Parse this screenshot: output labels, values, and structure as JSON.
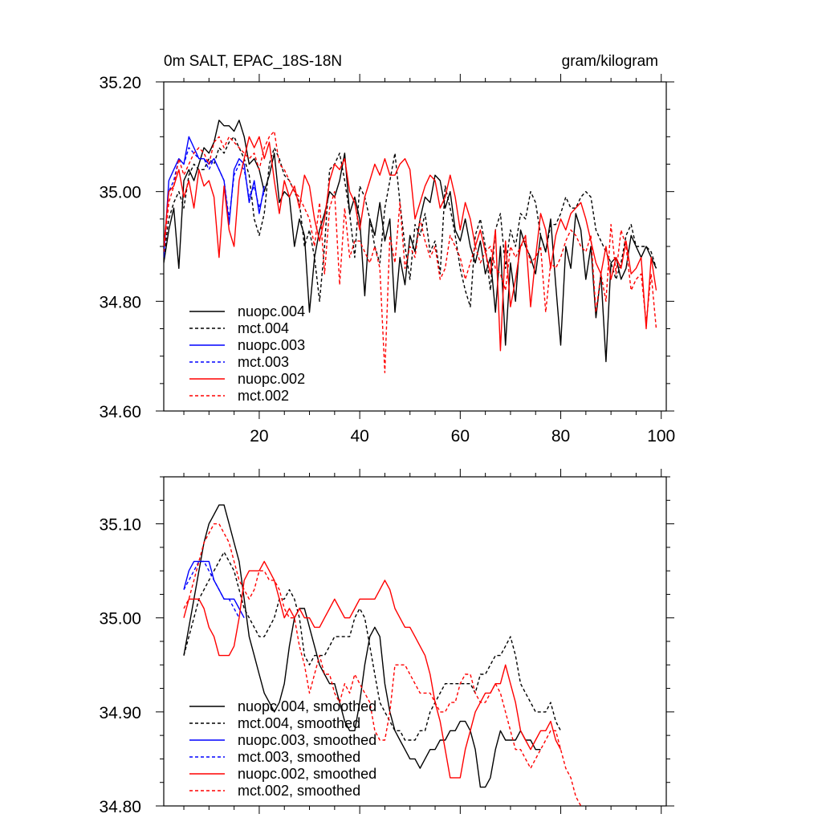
{
  "chart_data": [
    {
      "type": "line",
      "title_left": "0m SALT, EPAC_18S-18N",
      "title_right": "gram/kilogram",
      "xlim": [
        1,
        101
      ],
      "ylim": [
        34.6,
        35.2
      ],
      "x_ticks": [
        20,
        40,
        60,
        80,
        100
      ],
      "y_ticks": [
        34.6,
        34.8,
        35.0,
        35.2
      ],
      "y_tick_labels": [
        "34.60",
        "34.80",
        "35.00",
        "35.20"
      ],
      "legend_position": "bottom-left",
      "series": [
        {
          "name": "nuopc.004",
          "color": "#000000",
          "dash": "solid",
          "x0": 1,
          "values": [
            34.87,
            34.93,
            34.97,
            34.86,
            35.02,
            35.04,
            35.02,
            35.05,
            35.08,
            35.07,
            35.09,
            35.13,
            35.12,
            35.12,
            35.11,
            35.13,
            35.1,
            35.05,
            35.06,
            35.04,
            35.0,
            35.03,
            35.07,
            34.98,
            35.0,
            34.99,
            34.9,
            34.95,
            34.92,
            34.78,
            34.88,
            34.93,
            34.96,
            35.0,
            34.99,
            35.02,
            35.07,
            34.96,
            34.99,
            34.95,
            34.81,
            34.95,
            34.92,
            34.98,
            34.91,
            34.95,
            34.78,
            34.88,
            34.83,
            34.92,
            34.89,
            34.95,
            34.99,
            34.98,
            35.03,
            35.02,
            34.97,
            35.0,
            34.93,
            34.91,
            34.95,
            34.9,
            34.87,
            34.91,
            34.85,
            34.88,
            34.78,
            34.9,
            34.72,
            34.87,
            34.8,
            34.93,
            34.9,
            34.88,
            34.85,
            34.92,
            34.89,
            34.95,
            34.83,
            34.72,
            34.9,
            34.86,
            34.96,
            34.93,
            34.84,
            34.9,
            34.77,
            34.85,
            34.69,
            34.87,
            34.88,
            34.84,
            34.86,
            34.92,
            34.9,
            34.88,
            34.9,
            34.88,
            34.86
          ]
        },
        {
          "name": "mct.004",
          "color": "#000000",
          "dash": "dashed",
          "x0": 1,
          "values": [
            34.88,
            34.95,
            34.98,
            35.0,
            34.97,
            35.03,
            35.05,
            35.04,
            35.04,
            35.06,
            35.05,
            35.08,
            35.07,
            35.09,
            35.1,
            35.08,
            35.06,
            35.03,
            34.95,
            34.92,
            34.96,
            35.05,
            35.08,
            35.06,
            35.03,
            35.02,
            35.0,
            34.98,
            34.9,
            34.93,
            34.88,
            34.8,
            34.9,
            35.04,
            35.05,
            35.07,
            35.02,
            34.96,
            34.88,
            35.01,
            34.99,
            34.95,
            34.9,
            34.87,
            34.97,
            35.02,
            35.07,
            34.98,
            34.9,
            34.84,
            34.94,
            34.92,
            34.96,
            34.89,
            34.91,
            34.85,
            35.01,
            34.97,
            34.92,
            34.86,
            34.82,
            34.79,
            34.92,
            34.95,
            34.9,
            34.82,
            34.93,
            34.96,
            34.86,
            34.93,
            34.9,
            34.96,
            34.95,
            35.0,
            34.98,
            34.92,
            34.89,
            34.94,
            34.94,
            34.96,
            34.99,
            34.97,
            34.97,
            34.99,
            35.0,
            34.99,
            34.93,
            34.91,
            34.89,
            34.87,
            34.84,
            34.87,
            34.92,
            34.94,
            34.9,
            34.9,
            34.9,
            34.89,
            34.86
          ]
        },
        {
          "name": "nuopc.003",
          "color": "#0000ff",
          "dash": "solid",
          "x0": 1,
          "values": [
            34.88,
            35.02,
            35.04,
            35.06,
            35.05,
            35.1,
            35.08,
            35.06,
            35.06,
            35.05,
            35.06,
            35.04,
            35.02,
            34.94,
            35.04,
            35.06,
            35.05,
            34.98,
            35.02,
            34.96,
            35.01
          ]
        },
        {
          "name": "mct.003",
          "color": "#0000ff",
          "dash": "dashed",
          "x0": 1,
          "values": [
            34.89,
            35.0,
            35.02,
            35.06,
            35.05,
            35.08,
            35.07,
            35.06,
            35.06,
            35.04,
            35.06,
            35.04,
            35.02,
            34.95,
            35.03,
            35.05,
            35.04,
            34.99,
            35.01,
            34.97,
            35.0
          ]
        },
        {
          "name": "nuopc.002",
          "color": "#ff0000",
          "dash": "solid",
          "x0": 1,
          "values": [
            34.9,
            35.0,
            35.01,
            35.04,
            34.99,
            35.02,
            34.97,
            35.04,
            35.01,
            35.02,
            34.99,
            34.88,
            35.01,
            34.93,
            34.9,
            35.02,
            35.06,
            35.1,
            35.08,
            35.1,
            35.06,
            35.09,
            35.02,
            34.96,
            35.02,
            34.99,
            35.01,
            34.97,
            35.03,
            35.01,
            34.95,
            34.91,
            34.95,
            35.02,
            35.05,
            35.04,
            35.06,
            35.0,
            34.98,
            34.93,
            34.99,
            35.02,
            35.05,
            35.03,
            35.06,
            35.03,
            35.03,
            35.05,
            35.06,
            35.04,
            34.95,
            34.98,
            35.01,
            35.03,
            35.02,
            34.97,
            34.99,
            35.03,
            34.99,
            34.93,
            34.98,
            34.95,
            34.9,
            34.93,
            34.89,
            34.85,
            34.93,
            34.71,
            34.91,
            34.79,
            34.84,
            34.9,
            34.92,
            34.79,
            34.88,
            34.96,
            34.93,
            34.86,
            34.92,
            34.95,
            34.93,
            34.96,
            34.97,
            34.98,
            34.95,
            34.91,
            34.87,
            34.85,
            34.9,
            34.84,
            34.88,
            34.86,
            34.91,
            34.85,
            34.86,
            34.88,
            34.75,
            34.88,
            34.82
          ]
        },
        {
          "name": "mct.002",
          "color": "#ff0000",
          "dash": "dashed",
          "x0": 1,
          "values": [
            34.89,
            34.98,
            35.01,
            35.06,
            35.03,
            35.05,
            35.07,
            35.08,
            35.07,
            35.05,
            35.09,
            35.1,
            35.08,
            35.1,
            35.09,
            35.08,
            35.07,
            35.06,
            35.07,
            35.04,
            35.08,
            35.1,
            35.11,
            35.05,
            35.04,
            35.02,
            35.0,
            34.99,
            34.97,
            34.95,
            34.9,
            34.98,
            34.85,
            34.97,
            35.0,
            34.83,
            34.97,
            34.88,
            34.91,
            34.91,
            34.89,
            34.87,
            34.9,
            34.86,
            34.67,
            34.92,
            34.87,
            34.98,
            34.86,
            34.9,
            34.88,
            34.95,
            34.91,
            34.88,
            34.9,
            34.84,
            34.86,
            34.92,
            34.9,
            34.88,
            34.84,
            34.87,
            34.9,
            34.87,
            34.89,
            34.9,
            34.86,
            34.85,
            34.82,
            34.9,
            34.88,
            34.9,
            34.91,
            34.87,
            34.88,
            34.9,
            34.78,
            34.87,
            34.86,
            34.88,
            34.91,
            34.93,
            34.92,
            34.9,
            34.89,
            34.92,
            34.78,
            34.85,
            34.8,
            34.94,
            34.85,
            34.93,
            34.9,
            34.82,
            34.84,
            34.85,
            34.76,
            34.85,
            34.75
          ]
        }
      ],
      "legend": [
        {
          "label": "nuopc.004",
          "color": "#000000",
          "dash": "solid"
        },
        {
          "label": "mct.004",
          "color": "#000000",
          "dash": "dashed"
        },
        {
          "label": "nuopc.003",
          "color": "#0000ff",
          "dash": "solid"
        },
        {
          "label": "mct.003",
          "color": "#0000ff",
          "dash": "dashed"
        },
        {
          "label": "nuopc.002",
          "color": "#ff0000",
          "dash": "solid"
        },
        {
          "label": "mct.002",
          "color": "#ff0000",
          "dash": "dashed"
        }
      ]
    },
    {
      "type": "line",
      "title_left": "",
      "title_right": "",
      "xlim": [
        1,
        101
      ],
      "ylim": [
        34.8,
        35.15
      ],
      "x_ticks": [
        20,
        40,
        60,
        80,
        100
      ],
      "y_ticks": [
        34.8,
        34.9,
        35.0,
        35.1
      ],
      "y_tick_labels": [
        "34.80",
        "34.90",
        "35.00",
        "35.10"
      ],
      "legend_position": "bottom-left",
      "series": [
        {
          "name": "nuopc.004, smoothed",
          "color": "#000000",
          "dash": "solid",
          "x0": 5,
          "values": [
            34.96,
            34.99,
            35.02,
            35.05,
            35.08,
            35.1,
            35.11,
            35.12,
            35.12,
            35.1,
            35.08,
            35.06,
            35.02,
            34.98,
            34.96,
            34.94,
            34.92,
            34.91,
            34.9,
            34.91,
            34.93,
            34.97,
            35.0,
            35.01,
            35.01,
            34.99,
            34.97,
            34.95,
            34.94,
            34.93,
            34.93,
            34.91,
            34.89,
            34.88,
            34.88,
            34.91,
            34.95,
            34.98,
            34.99,
            34.98,
            34.93,
            34.9,
            34.88,
            34.87,
            34.86,
            34.85,
            34.85,
            34.84,
            34.85,
            34.86,
            34.86,
            34.87,
            34.87,
            34.88,
            34.88,
            34.89,
            34.89,
            34.88,
            34.86,
            34.82,
            34.82,
            34.83,
            34.86,
            34.88,
            34.87,
            34.87,
            34.87,
            34.88,
            34.87,
            34.87,
            34.86,
            34.86
          ]
        },
        {
          "name": "mct.004, smoothed",
          "color": "#000000",
          "dash": "dashed",
          "x0": 5,
          "values": [
            34.96,
            34.98,
            35.0,
            35.02,
            35.03,
            35.04,
            35.05,
            35.06,
            35.07,
            35.06,
            35.05,
            35.03,
            35.01,
            35.0,
            34.99,
            34.98,
            34.98,
            34.99,
            35.0,
            35.02,
            35.02,
            35.03,
            35.02,
            35.0,
            34.96,
            34.95,
            34.96,
            34.96,
            34.96,
            34.97,
            34.98,
            34.98,
            34.98,
            34.98,
            35.0,
            35.01,
            35.0,
            34.97,
            34.94,
            34.91,
            34.9,
            34.89,
            34.88,
            34.88,
            34.87,
            34.87,
            34.87,
            34.88,
            34.88,
            34.9,
            34.91,
            34.92,
            34.93,
            34.93,
            34.93,
            34.93,
            34.93,
            34.93,
            34.92,
            34.94,
            34.94,
            34.95,
            34.96,
            34.96,
            34.97,
            34.98,
            34.96,
            34.93,
            34.92,
            34.91,
            34.9,
            34.9,
            34.9,
            34.91,
            34.89,
            34.88
          ]
        },
        {
          "name": "nuopc.003, smoothed",
          "color": "#0000ff",
          "dash": "solid",
          "x0": 5,
          "values": [
            35.03,
            35.05,
            35.06,
            35.06,
            35.06,
            35.06,
            35.04,
            35.03,
            35.02,
            35.02,
            35.02,
            35.01,
            35.0
          ]
        },
        {
          "name": "mct.003, smoothed",
          "color": "#0000ff",
          "dash": "dashed",
          "x0": 5,
          "values": [
            35.03,
            35.04,
            35.05,
            35.06,
            35.06,
            35.05,
            35.04,
            35.03,
            35.02,
            35.02,
            35.01,
            35.0
          ]
        },
        {
          "name": "nuopc.002, smoothed",
          "color": "#ff0000",
          "dash": "solid",
          "x0": 5,
          "values": [
            35.0,
            35.02,
            35.02,
            35.02,
            35.01,
            34.99,
            34.98,
            34.96,
            34.96,
            34.96,
            34.97,
            35.0,
            35.04,
            35.05,
            35.05,
            35.05,
            35.06,
            35.05,
            35.04,
            35.02,
            35.0,
            35.01,
            35.0,
            35.01,
            35.0,
            35.0,
            34.99,
            34.99,
            35.0,
            35.01,
            35.02,
            35.01,
            35.0,
            35.0,
            35.01,
            35.02,
            35.02,
            35.02,
            35.02,
            35.03,
            35.04,
            35.03,
            35.01,
            35.0,
            34.99,
            34.99,
            34.98,
            34.97,
            34.96,
            34.94,
            34.91,
            34.89,
            34.86,
            34.83,
            34.83,
            34.83,
            34.86,
            34.88,
            34.9,
            34.91,
            34.92,
            34.92,
            34.93,
            34.93,
            34.95,
            34.93,
            34.91,
            34.88,
            34.87,
            34.86,
            34.87,
            34.88,
            34.88,
            34.89,
            34.87,
            34.86
          ]
        },
        {
          "name": "mct.002, smoothed",
          "color": "#ff0000",
          "dash": "dashed",
          "x0": 5,
          "values": [
            35.01,
            35.02,
            35.04,
            35.06,
            35.08,
            35.09,
            35.1,
            35.1,
            35.09,
            35.08,
            35.06,
            35.04,
            35.03,
            35.02,
            35.03,
            35.05,
            35.05,
            35.04,
            35.04,
            35.03,
            35.01,
            35.0,
            35.0,
            34.97,
            34.95,
            34.92,
            34.94,
            34.96,
            34.94,
            34.94,
            34.92,
            34.91,
            34.93,
            34.92,
            34.94,
            34.93,
            34.92,
            34.91,
            34.88,
            34.87,
            34.87,
            34.9,
            34.95,
            34.95,
            34.95,
            34.94,
            34.93,
            34.92,
            34.92,
            34.92,
            34.91,
            34.9,
            34.9,
            34.91,
            34.91,
            34.93,
            34.94,
            34.94,
            34.92,
            34.91,
            34.91,
            34.92,
            34.93,
            34.92,
            34.9,
            34.88,
            34.86,
            34.86,
            34.85,
            34.84,
            34.85,
            34.86,
            34.87,
            34.88,
            34.88,
            34.86,
            34.84,
            34.83,
            34.81,
            34.8
          ]
        }
      ],
      "legend": [
        {
          "label": "nuopc.004, smoothed",
          "color": "#000000",
          "dash": "solid"
        },
        {
          "label": "mct.004, smoothed",
          "color": "#000000",
          "dash": "dashed"
        },
        {
          "label": "nuopc.003, smoothed",
          "color": "#0000ff",
          "dash": "solid"
        },
        {
          "label": "mct.003, smoothed",
          "color": "#0000ff",
          "dash": "dashed"
        },
        {
          "label": "nuopc.002, smoothed",
          "color": "#ff0000",
          "dash": "solid"
        },
        {
          "label": "mct.002, smoothed",
          "color": "#ff0000",
          "dash": "dashed"
        }
      ]
    }
  ]
}
